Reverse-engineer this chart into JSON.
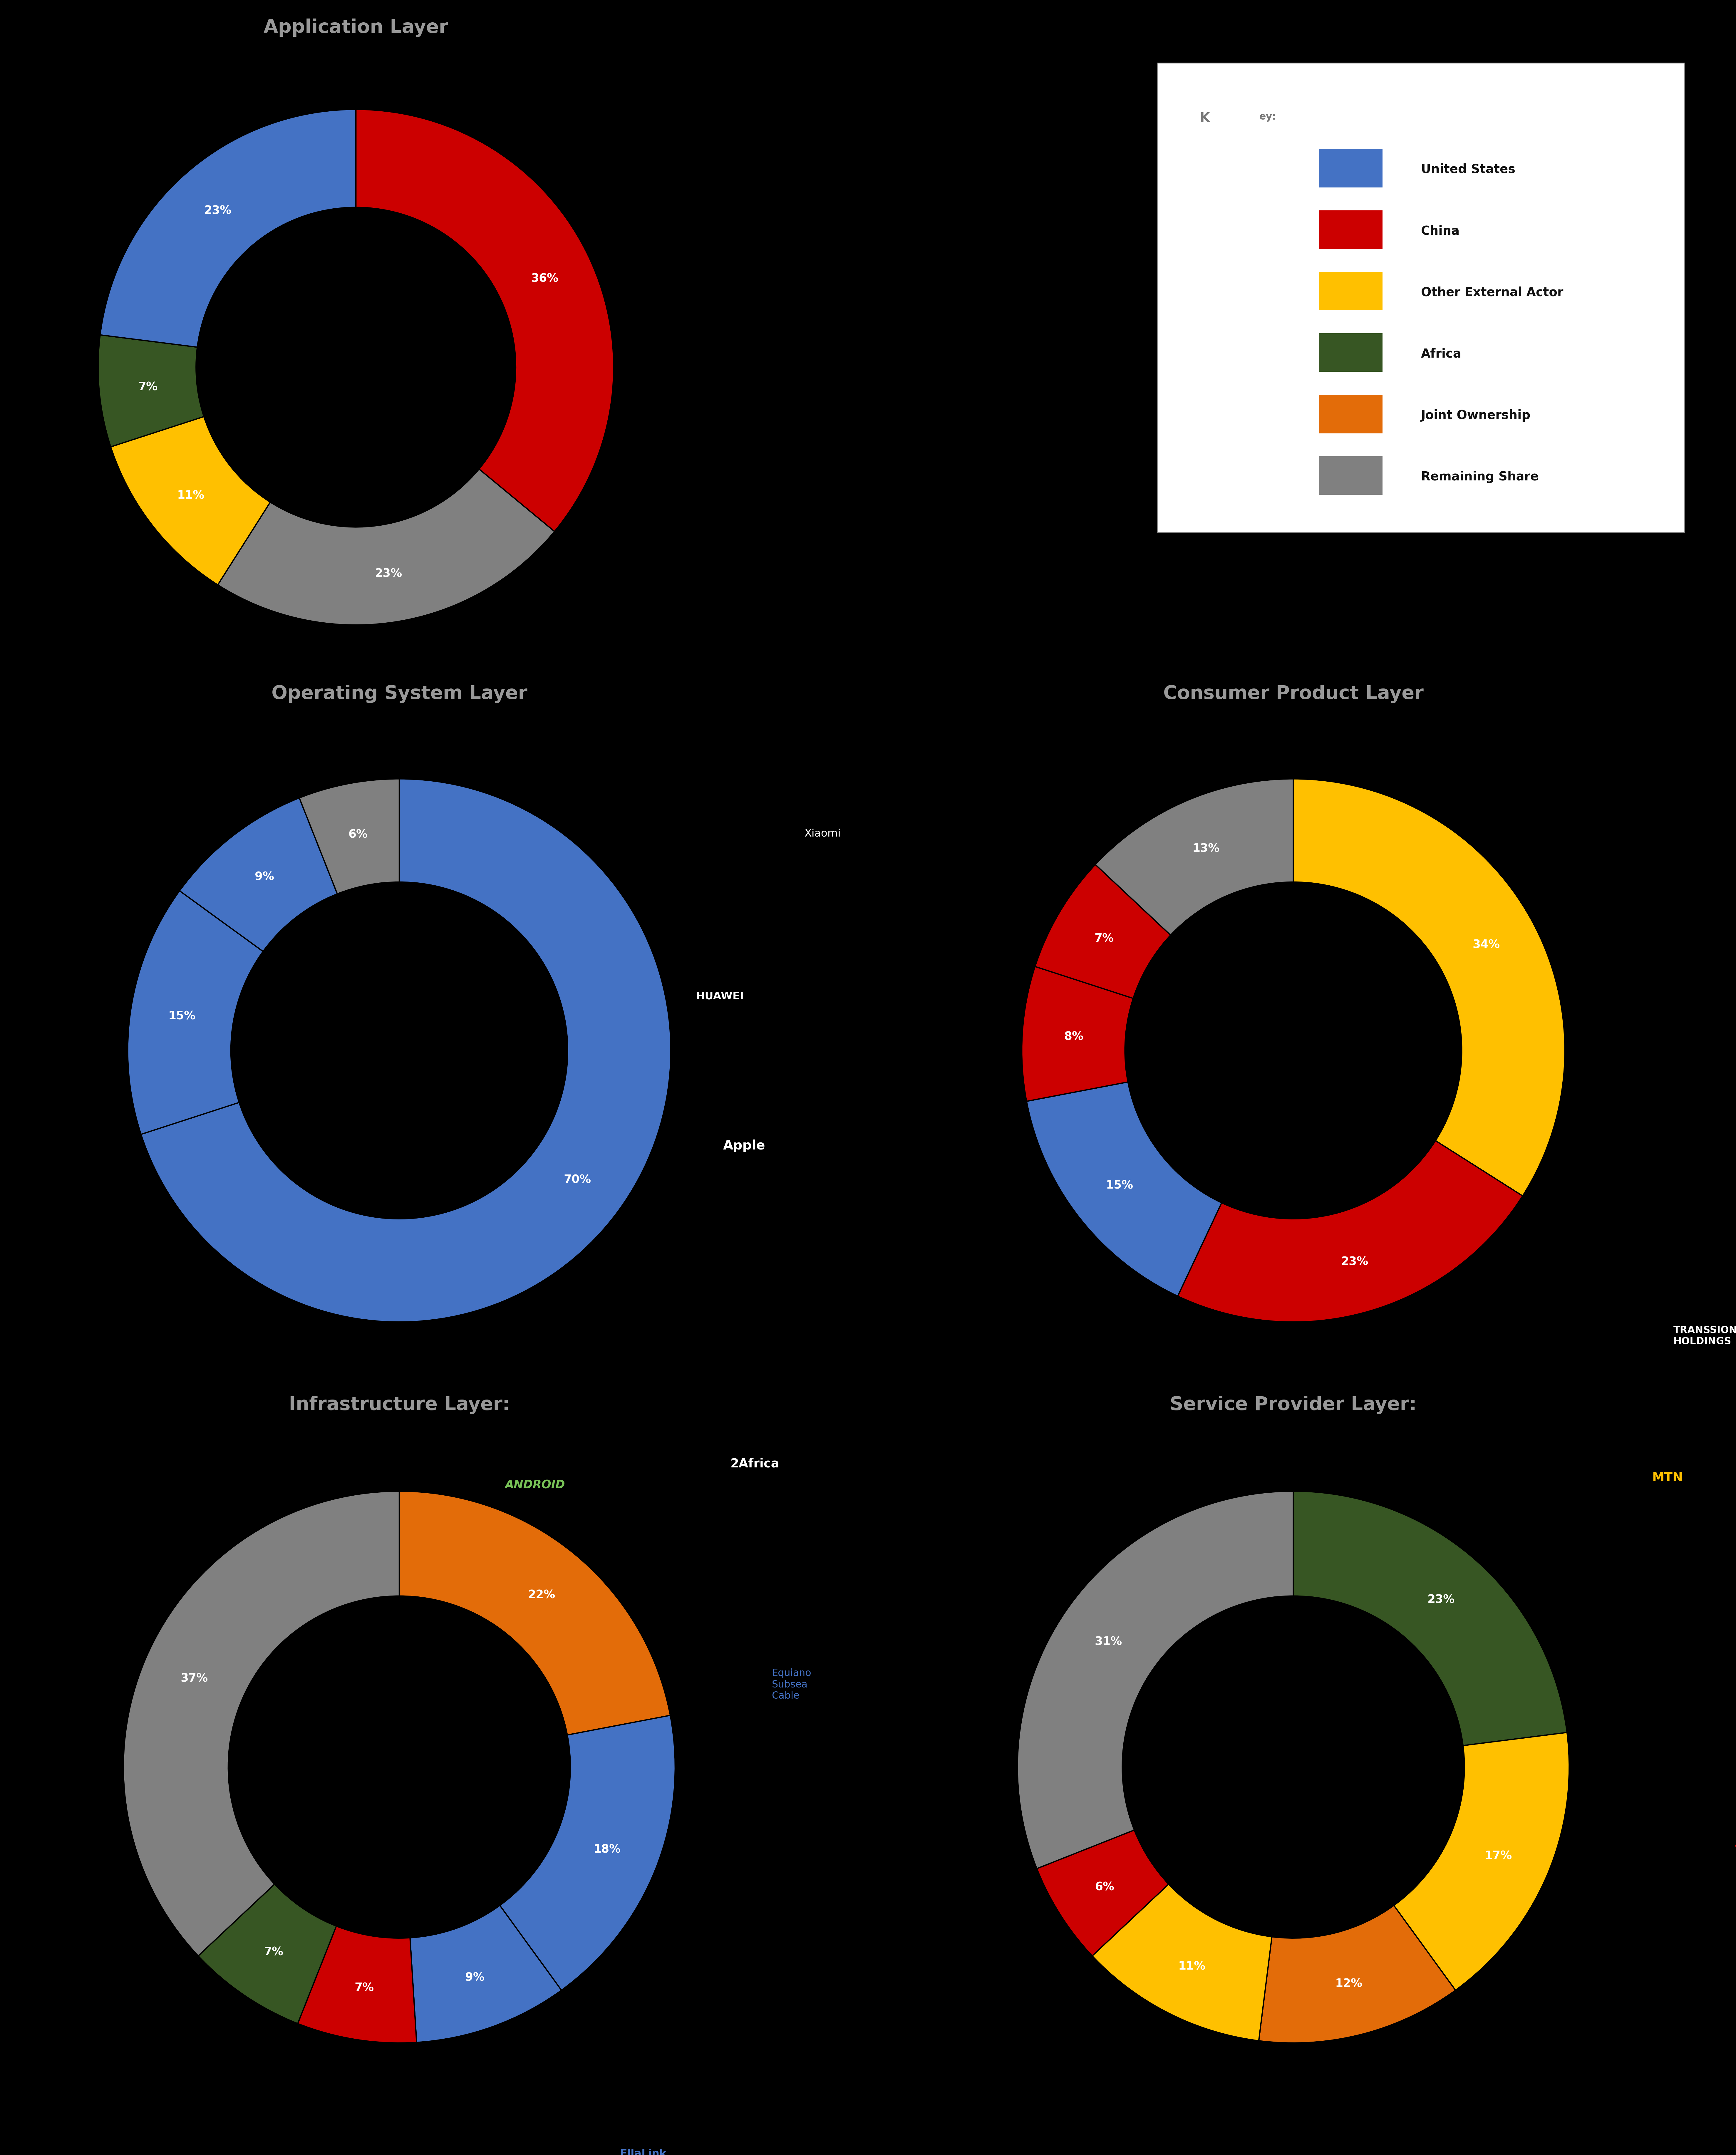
{
  "background_color": "#000000",
  "title_color": "#999999",
  "divider_color": "#555555",
  "legend_items": [
    {
      "label": "United States",
      "color": "#4472C4"
    },
    {
      "label": "China",
      "color": "#CC0000"
    },
    {
      "label": "Other External Actor",
      "color": "#FFC000"
    },
    {
      "label": "Africa",
      "color": "#375623"
    },
    {
      "label": "Joint Ownership",
      "color": "#E36C09"
    },
    {
      "label": "Remaining Share",
      "color": "#808080"
    }
  ],
  "app_layer": {
    "title_first": "A",
    "title_rest": "pplication ",
    "title_second": "L",
    "title_second_rest": "ayer",
    "values": [
      36,
      23,
      11,
      7,
      23
    ],
    "colors": [
      "#CC0000",
      "#808080",
      "#FFC000",
      "#375623",
      "#4472C4"
    ],
    "labels": [
      "36%",
      "23%",
      "11%",
      "7%",
      "23%"
    ],
    "startangle": 90,
    "counterclock": false
  },
  "os_layer": {
    "title_parts": [
      [
        "O",
        "perating "
      ],
      [
        "S",
        "ystem "
      ],
      [
        "L",
        "ayer"
      ]
    ],
    "values": [
      70,
      15,
      9,
      6
    ],
    "colors": [
      "#4472C4",
      "#4472C4",
      "#4472C4",
      "#808080"
    ],
    "labels": [
      "70%",
      "15%",
      "9%",
      "6%"
    ],
    "startangle": 90,
    "counterclock": false
  },
  "consumer_layer": {
    "title_parts": [
      [
        "C",
        "onsumer "
      ],
      [
        "P",
        "roduct "
      ],
      [
        "L",
        "ayer"
      ]
    ],
    "values": [
      34,
      23,
      15,
      8,
      7,
      13
    ],
    "colors": [
      "#FFC000",
      "#CC0000",
      "#4472C4",
      "#CC0000",
      "#CC0000",
      "#808080"
    ],
    "labels": [
      "34%",
      "23%",
      "15%",
      "8%",
      "7%",
      "13%"
    ],
    "startangle": 90,
    "counterclock": false
  },
  "infra_layer": {
    "title_parts": [
      [
        "I",
        "nfrastructure "
      ],
      [
        "L",
        "ayer:"
      ]
    ],
    "values": [
      22,
      18,
      9,
      7,
      7,
      37
    ],
    "colors": [
      "#E36C09",
      "#4472C4",
      "#4472C4",
      "#CC0000",
      "#375623",
      "#808080"
    ],
    "labels": [
      "22%",
      "18%",
      "9%",
      "7%",
      "7%",
      "37%"
    ],
    "startangle": 90,
    "counterclock": false
  },
  "service_layer": {
    "title_parts": [
      [
        "S",
        "ervice "
      ],
      [
        "P",
        "rovider "
      ],
      [
        "L",
        "ayer:"
      ]
    ],
    "values": [
      23,
      17,
      12,
      11,
      6,
      31
    ],
    "colors": [
      "#375623",
      "#FFC000",
      "#E36C09",
      "#FFC000",
      "#CC0000",
      "#808080"
    ],
    "labels": [
      "23%",
      "17%",
      "12%",
      "11%",
      "6%",
      "31%"
    ],
    "startangle": 90,
    "counterclock": false
  },
  "donut_width": 0.38,
  "pct_fontsize": 28,
  "title_big_size": 46,
  "title_small_size": 38,
  "annot_fontsize": 26,
  "legend_fontsize": 30,
  "key_fontsize": 32
}
